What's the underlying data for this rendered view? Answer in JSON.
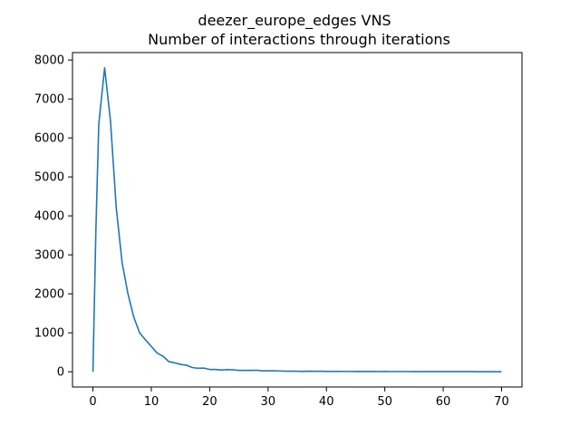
{
  "chart_data": {
    "type": "line",
    "title": "deezer_europe_edges VNS",
    "subtitle": "Number of interactions through iterations",
    "xlabel": "",
    "ylabel": "",
    "xlim": [
      -3.5,
      73.5
    ],
    "ylim": [
      -390,
      8190
    ],
    "xticks": [
      0,
      10,
      20,
      30,
      40,
      50,
      60,
      70
    ],
    "yticks": [
      0,
      1000,
      2000,
      3000,
      4000,
      5000,
      6000,
      7000,
      8000
    ],
    "grid": false,
    "series": [
      {
        "color": "#1f77b4",
        "x": [
          0,
          0.5,
          1,
          2,
          3,
          4,
          5,
          6,
          7,
          8,
          9,
          10,
          11,
          12,
          13,
          14,
          15,
          16,
          17,
          18,
          19,
          20,
          21,
          22,
          23,
          24,
          25,
          26,
          27,
          28,
          29,
          30,
          31,
          32,
          33,
          34,
          35,
          36,
          37,
          38,
          39,
          40,
          41,
          42,
          43,
          44,
          45,
          46,
          47,
          48,
          49,
          50,
          51,
          52,
          53,
          54,
          55,
          56,
          57,
          58,
          59,
          60,
          61,
          62,
          63,
          64,
          65,
          66,
          67,
          68,
          69,
          70
        ],
        "y": [
          0,
          3600,
          6350,
          7800,
          6450,
          4200,
          2800,
          2000,
          1400,
          1000,
          820,
          650,
          480,
          400,
          260,
          230,
          190,
          170,
          110,
          90,
          95,
          60,
          60,
          45,
          55,
          50,
          35,
          35,
          35,
          40,
          25,
          25,
          25,
          20,
          15,
          15,
          12,
          10,
          15,
          12,
          12,
          10,
          8,
          10,
          8,
          8,
          7,
          7,
          6,
          6,
          5,
          6,
          5,
          5,
          5,
          5,
          4,
          4,
          4,
          4,
          3,
          3,
          3,
          3,
          3,
          3,
          3,
          2,
          2,
          2,
          2,
          2
        ]
      }
    ]
  }
}
